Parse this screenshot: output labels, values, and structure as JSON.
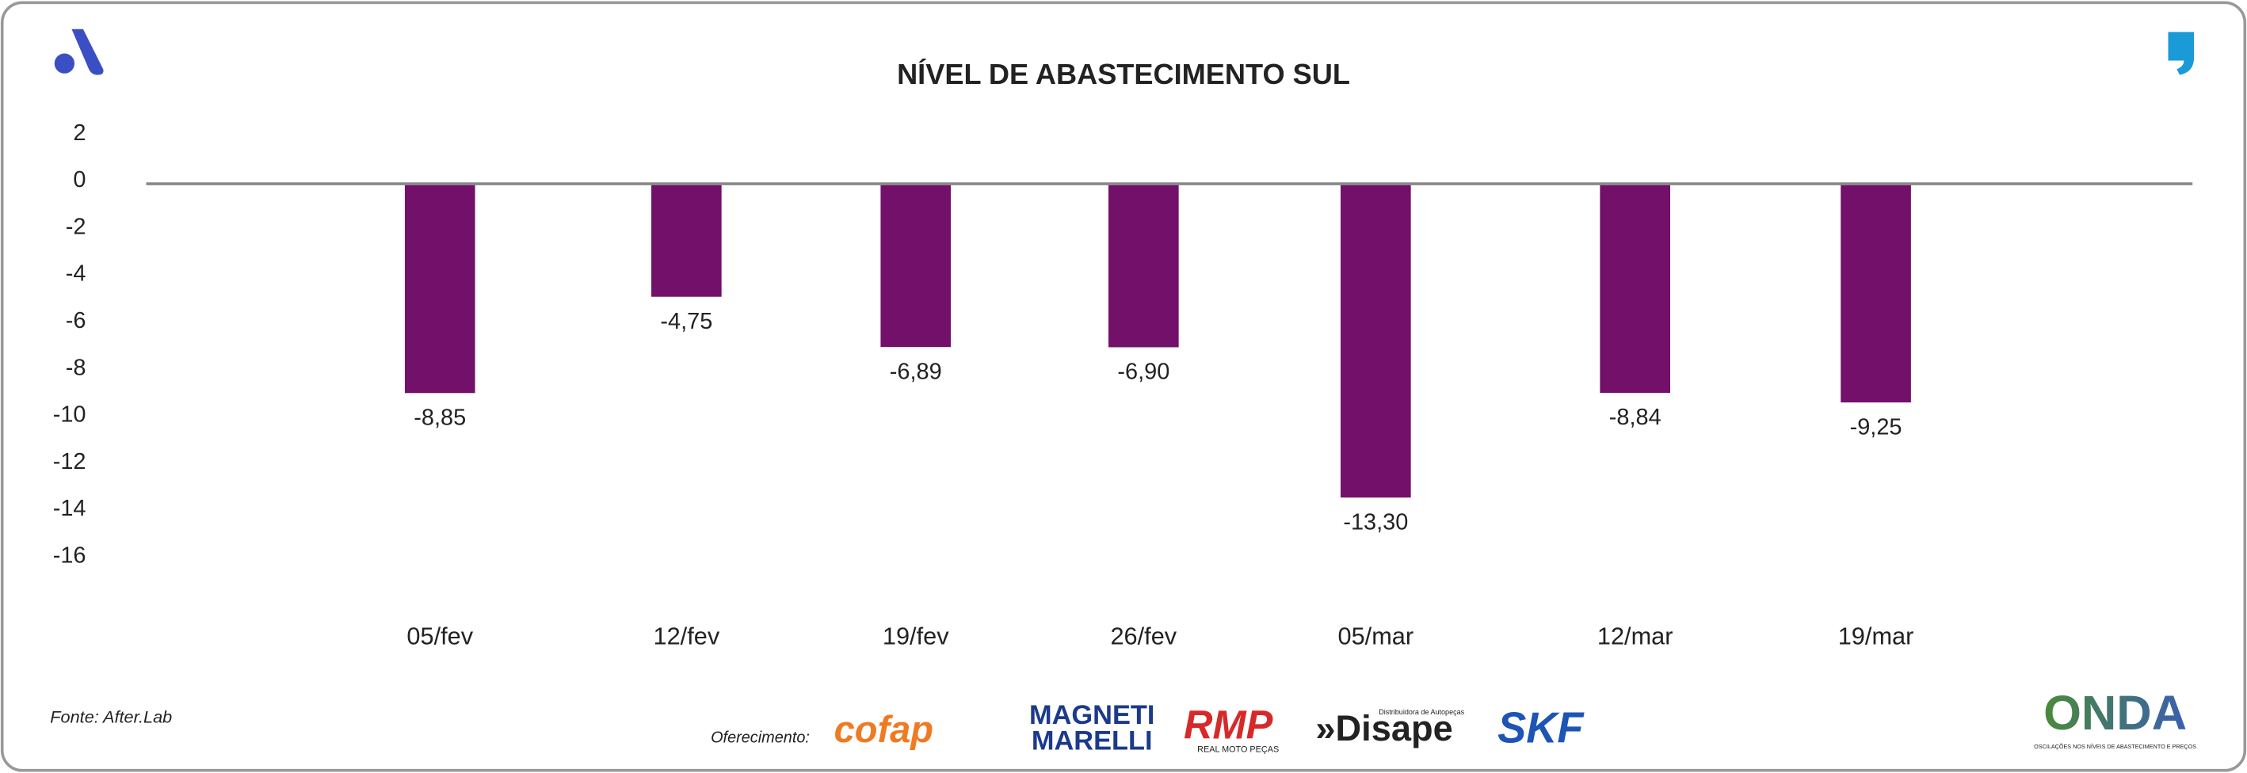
{
  "chart_data": {
    "type": "bar",
    "title": "NÍVEL DE ABASTECIMENTO SUL",
    "categories": [
      "05/fev",
      "12/fev",
      "19/fev",
      "26/fev",
      "05/mar",
      "12/mar",
      "19/mar"
    ],
    "values": [
      -8.85,
      -4.75,
      -6.89,
      -6.9,
      -13.3,
      -8.84,
      -9.25
    ],
    "value_labels": [
      "-8,85",
      "-4,75",
      "-6,89",
      "-6,90",
      "-13,30",
      "-8,84",
      "-9,25"
    ],
    "color": "#72106a",
    "ylim": [
      -16,
      2
    ],
    "yticks": [
      2,
      0,
      -2,
      -4,
      -6,
      -8,
      -10,
      -12,
      -14,
      -16
    ],
    "grid": false,
    "source": "Fonte: After.Lab"
  },
  "footer": {
    "sponsor_label": "Oferecimento:",
    "sponsors": [
      "cofap",
      "MAGNETI",
      "MARELLI",
      "RMP",
      "REAL MOTO PEÇAS",
      "Distribuidora de Autopeças",
      "»Disape",
      "SKF",
      "ONDA",
      "OSCILAÇÕES NOS NÍVEIS DE ABASTECIMENTO E PREÇOS"
    ]
  }
}
